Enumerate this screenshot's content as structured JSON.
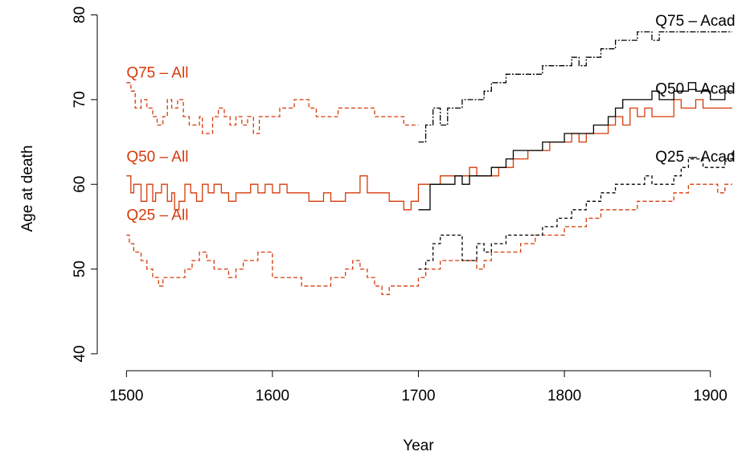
{
  "chart_data": {
    "type": "line",
    "title": "",
    "xlabel": "Year",
    "ylabel": "Age at death",
    "xlim": [
      1480,
      1920
    ],
    "ylim": [
      38,
      81
    ],
    "xticks": [
      1500,
      1600,
      1700,
      1800,
      1900
    ],
    "yticks": [
      40,
      50,
      60,
      70,
      80
    ],
    "grid": false,
    "legend": "none",
    "colors": {
      "all": "#d63a0a",
      "acad": "#000000"
    },
    "series": [
      {
        "name": "Q75 – All",
        "color": "#d63a0a",
        "dash": "5,3",
        "x": [
          1500,
          1503,
          1506,
          1510,
          1514,
          1518,
          1521,
          1525,
          1528,
          1531,
          1535,
          1539,
          1543,
          1546,
          1550,
          1552,
          1555,
          1559,
          1563,
          1567,
          1571,
          1575,
          1579,
          1583,
          1587,
          1591,
          1595,
          1600,
          1605,
          1610,
          1615,
          1620,
          1625,
          1630,
          1635,
          1640,
          1645,
          1650,
          1655,
          1660,
          1665,
          1670,
          1675,
          1680,
          1685,
          1690,
          1695,
          1700
        ],
        "y": [
          72,
          71,
          69,
          70,
          69,
          68,
          67,
          68,
          70,
          69,
          70,
          68,
          67,
          67,
          68,
          66,
          66,
          68,
          69,
          68,
          67,
          68,
          67,
          68,
          66,
          68,
          68,
          68,
          69,
          69,
          70,
          70,
          69,
          68,
          68,
          68,
          69,
          69,
          69,
          69,
          69,
          68,
          68,
          68,
          68,
          67,
          67,
          67
        ]
      },
      {
        "name": "Q50 – All",
        "color": "#d63a0a",
        "dash": "",
        "x": [
          1500,
          1503,
          1505,
          1510,
          1514,
          1518,
          1520,
          1524,
          1528,
          1531,
          1533,
          1536,
          1540,
          1544,
          1548,
          1552,
          1556,
          1560,
          1565,
          1570,
          1575,
          1580,
          1585,
          1590,
          1595,
          1600,
          1605,
          1610,
          1615,
          1620,
          1625,
          1630,
          1635,
          1640,
          1645,
          1650,
          1655,
          1660,
          1665,
          1670,
          1675,
          1680,
          1685,
          1690,
          1695,
          1700,
          1705,
          1710,
          1715,
          1720,
          1725,
          1730,
          1735,
          1740,
          1745,
          1750,
          1755,
          1760,
          1765,
          1770,
          1775,
          1780,
          1785,
          1790,
          1795,
          1800,
          1805,
          1810,
          1815,
          1820,
          1825,
          1830,
          1835,
          1840,
          1845,
          1850,
          1855,
          1860,
          1865,
          1870,
          1875,
          1880,
          1885,
          1890,
          1895,
          1900,
          1905,
          1910,
          1915
        ],
        "y": [
          61,
          59,
          60,
          58,
          60,
          58,
          59,
          60,
          58,
          59,
          57,
          58,
          60,
          59,
          58,
          60,
          59,
          60,
          59,
          58,
          59,
          59,
          60,
          59,
          60,
          59,
          60,
          59,
          59,
          59,
          58,
          58,
          59,
          58,
          58,
          59,
          59,
          61,
          59,
          59,
          59,
          58,
          58,
          57,
          58,
          60,
          60,
          60,
          61,
          61,
          61,
          61,
          62,
          61,
          61,
          61,
          62,
          62,
          63,
          63,
          64,
          64,
          64,
          65,
          65,
          65,
          66,
          65,
          66,
          66,
          66,
          67,
          68,
          67,
          69,
          68,
          69,
          68,
          68,
          68,
          70,
          69,
          69,
          70,
          69,
          69,
          69,
          69,
          69
        ]
      },
      {
        "name": "Q25 – All",
        "color": "#d63a0a",
        "dash": "5,3",
        "x": [
          1500,
          1502,
          1505,
          1510,
          1514,
          1518,
          1522,
          1525,
          1530,
          1535,
          1540,
          1545,
          1550,
          1555,
          1560,
          1565,
          1570,
          1575,
          1580,
          1585,
          1590,
          1595,
          1600,
          1605,
          1610,
          1615,
          1620,
          1625,
          1630,
          1635,
          1640,
          1645,
          1650,
          1655,
          1660,
          1665,
          1670,
          1675,
          1680,
          1685,
          1690,
          1695,
          1700,
          1705,
          1710,
          1715,
          1720,
          1725,
          1730,
          1735,
          1740,
          1745,
          1750,
          1755,
          1760,
          1765,
          1770,
          1775,
          1780,
          1785,
          1790,
          1795,
          1800,
          1805,
          1810,
          1815,
          1820,
          1825,
          1830,
          1835,
          1840,
          1845,
          1850,
          1855,
          1860,
          1865,
          1870,
          1875,
          1880,
          1885,
          1890,
          1895,
          1900,
          1905,
          1910,
          1915
        ],
        "y": [
          54,
          53,
          52,
          51,
          50,
          49,
          48,
          49,
          49,
          49,
          50,
          51,
          52,
          51,
          50,
          50,
          49,
          50,
          51,
          51,
          52,
          52,
          49,
          49,
          49,
          49,
          48,
          48,
          48,
          48,
          49,
          49,
          50,
          51,
          50,
          49,
          48,
          47,
          48,
          48,
          48,
          48,
          49,
          50,
          50,
          51,
          51,
          51,
          51,
          51,
          50,
          51,
          52,
          52,
          52,
          52,
          53,
          53,
          54,
          54,
          54,
          54,
          55,
          55,
          55,
          56,
          56,
          57,
          57,
          57,
          57,
          57,
          58,
          58,
          58,
          58,
          58,
          59,
          59,
          60,
          60,
          60,
          60,
          59,
          60,
          60
        ]
      },
      {
        "name": "Q75 – Acad",
        "color": "#000000",
        "dash": "7,2,2,2",
        "x": [
          1700,
          1705,
          1710,
          1715,
          1720,
          1725,
          1730,
          1735,
          1740,
          1745,
          1750,
          1755,
          1760,
          1765,
          1770,
          1775,
          1780,
          1785,
          1790,
          1795,
          1800,
          1805,
          1810,
          1815,
          1820,
          1825,
          1830,
          1835,
          1840,
          1845,
          1850,
          1855,
          1860,
          1865,
          1870,
          1875,
          1880,
          1885,
          1890,
          1895,
          1900,
          1905,
          1910,
          1915
        ],
        "y": [
          65,
          67,
          69,
          67,
          69,
          69,
          70,
          70,
          70,
          71,
          72,
          72,
          73,
          73,
          73,
          73,
          73,
          74,
          74,
          74,
          74,
          75,
          74,
          75,
          75,
          76,
          76,
          77,
          77,
          77,
          78,
          78,
          77,
          78,
          78,
          78,
          78,
          78,
          78,
          78,
          78,
          78,
          78,
          78
        ]
      },
      {
        "name": "Q50 – Acad",
        "color": "#000000",
        "dash": "",
        "x": [
          1700,
          1705,
          1708,
          1712,
          1716,
          1720,
          1725,
          1730,
          1735,
          1740,
          1745,
          1750,
          1755,
          1760,
          1765,
          1770,
          1775,
          1780,
          1785,
          1790,
          1795,
          1800,
          1805,
          1810,
          1815,
          1820,
          1825,
          1830,
          1835,
          1840,
          1845,
          1850,
          1855,
          1860,
          1865,
          1870,
          1875,
          1880,
          1885,
          1890,
          1895,
          1900,
          1905,
          1910,
          1915
        ],
        "y": [
          57,
          57,
          60,
          60,
          60,
          60,
          61,
          60,
          61,
          61,
          61,
          62,
          62,
          63,
          64,
          64,
          64,
          64,
          65,
          65,
          65,
          66,
          66,
          66,
          66,
          67,
          67,
          68,
          69,
          70,
          70,
          70,
          70,
          71,
          70,
          70,
          71,
          71,
          72,
          71,
          71,
          70,
          70,
          71,
          71
        ]
      },
      {
        "name": "Q25 – Acad",
        "color": "#000000",
        "dash": "4,3",
        "x": [
          1700,
          1705,
          1710,
          1715,
          1720,
          1725,
          1730,
          1735,
          1740,
          1745,
          1750,
          1755,
          1760,
          1765,
          1770,
          1775,
          1780,
          1785,
          1790,
          1795,
          1800,
          1805,
          1810,
          1815,
          1820,
          1825,
          1830,
          1835,
          1840,
          1845,
          1850,
          1855,
          1860,
          1865,
          1870,
          1875,
          1880,
          1885,
          1890,
          1895,
          1900,
          1905,
          1910,
          1915
        ],
        "y": [
          50,
          51,
          53,
          54,
          54,
          54,
          51,
          51,
          53,
          52,
          53,
          53,
          54,
          54,
          54,
          54,
          54,
          55,
          55,
          56,
          56,
          57,
          57,
          58,
          58,
          59,
          59,
          60,
          60,
          60,
          60,
          61,
          60,
          60,
          60,
          61,
          62,
          63,
          63,
          62,
          62,
          62,
          63,
          64
        ]
      }
    ],
    "annotations": [
      {
        "text": "Q75 – All",
        "x": 1500,
        "y": 72.6,
        "anchor": "start",
        "color": "#d63a0a"
      },
      {
        "text": "Q50 – All",
        "x": 1500,
        "y": 62.7,
        "anchor": "start",
        "color": "#d63a0a"
      },
      {
        "text": "Q25 – All",
        "x": 1500,
        "y": 55.8,
        "anchor": "start",
        "color": "#d63a0a"
      },
      {
        "text": "Q75 – Acad",
        "x": 1917,
        "y": 78.7,
        "anchor": "end",
        "color": "#000000"
      },
      {
        "text": "Q50 – Acad",
        "x": 1917,
        "y": 70.7,
        "anchor": "end",
        "color": "#000000"
      },
      {
        "text": "Q25 – Acad",
        "x": 1917,
        "y": 62.7,
        "anchor": "end",
        "color": "#000000"
      }
    ]
  }
}
